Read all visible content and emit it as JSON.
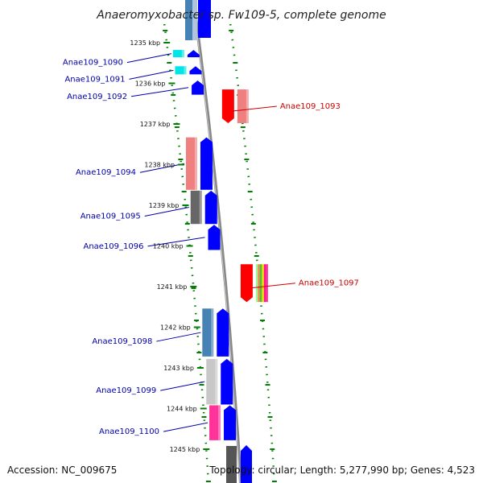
{
  "header": {
    "title": "Anaeromyxobacter sp. Fw109-5, complete genome"
  },
  "footer": {
    "accession": "Accession: NC_009675",
    "topology": "Topology: circular; Length: 5,277,990 bp; Genes: 4,523"
  },
  "colors": {
    "forward_arrow": "#0000ff",
    "reverse_arrow": "#ff0000",
    "forward_label": "#0000aa",
    "reverse_label": "#cc0000",
    "scale_tick": "#008000",
    "backbone": "#888888"
  },
  "scale": {
    "ticks": [
      "1235 kbp",
      "1236 kbp",
      "1237 kbp",
      "1238 kbp",
      "1239 kbp",
      "1240 kbp",
      "1241 kbp",
      "1242 kbp",
      "1243 kbp",
      "1244 kbp",
      "1245 kbp"
    ]
  },
  "genes": [
    {
      "id": "Anae109_1090",
      "strand": "forward",
      "start_kbp": 1235.18,
      "end_kbp": 1235.36,
      "class_color": "#00e5e5"
    },
    {
      "id": "Anae109_1091",
      "strand": "forward",
      "start_kbp": 1235.58,
      "end_kbp": 1235.78,
      "class_color": "#00e5e5"
    },
    {
      "id": "Anae109_1092",
      "strand": "forward",
      "start_kbp": 1235.93,
      "end_kbp": 1236.28,
      "class_color": ""
    },
    {
      "id": "Anae109_1093",
      "strand": "reverse",
      "start_kbp": 1236.15,
      "end_kbp": 1236.98,
      "class_color": "#f08080"
    },
    {
      "id": "Anae109_1094",
      "strand": "forward",
      "start_kbp": 1237.33,
      "end_kbp": 1238.62,
      "class_color": "#f08080"
    },
    {
      "id": "Anae109_1095",
      "strand": "forward",
      "start_kbp": 1238.64,
      "end_kbp": 1239.46,
      "class_color": "#666666"
    },
    {
      "id": "Anae109_1096",
      "strand": "forward",
      "start_kbp": 1239.48,
      "end_kbp": 1240.1,
      "class_color": ""
    },
    {
      "id": "Anae109_1097",
      "strand": "reverse",
      "start_kbp": 1240.45,
      "end_kbp": 1241.38,
      "class_color": "multi"
    },
    {
      "id": "Anae109_1098",
      "strand": "forward",
      "start_kbp": 1241.54,
      "end_kbp": 1242.72,
      "class_color": "#4682b4"
    },
    {
      "id": "Anae109_1099",
      "strand": "forward",
      "start_kbp": 1242.78,
      "end_kbp": 1243.9,
      "class_color": "#c8c8c8"
    },
    {
      "id": "Anae109_1100",
      "strand": "forward",
      "start_kbp": 1243.92,
      "end_kbp": 1244.78,
      "class_color": "#ff3399"
    }
  ]
}
